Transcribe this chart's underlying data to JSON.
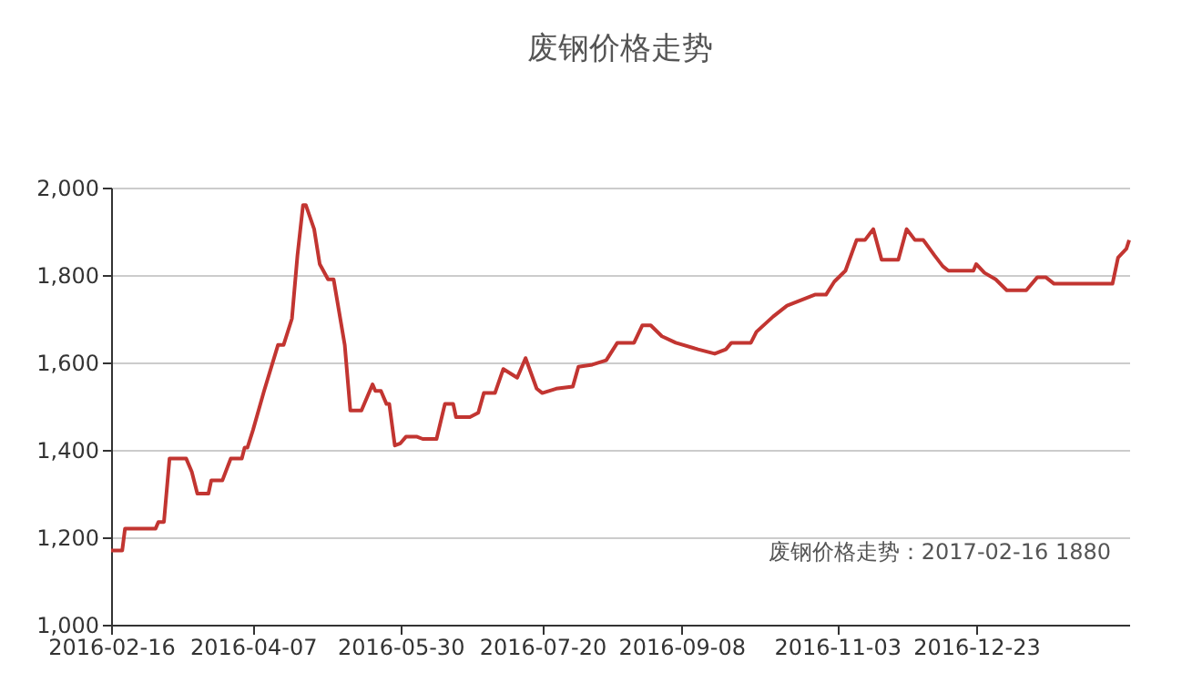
{
  "chart_data": {
    "type": "line",
    "title": "废钢价格走势",
    "x": [
      "2016-02-16",
      "2016-02-20",
      "2016-02-21",
      "2016-03-03",
      "2016-03-04",
      "2016-03-06",
      "2016-03-08",
      "2016-03-14",
      "2016-03-16",
      "2016-03-18",
      "2016-03-22",
      "2016-03-23",
      "2016-03-27",
      "2016-03-30",
      "2016-04-03",
      "2016-04-04",
      "2016-04-05",
      "2016-04-07",
      "2016-04-11",
      "2016-04-16",
      "2016-04-18",
      "2016-04-21",
      "2016-04-23",
      "2016-04-25",
      "2016-04-26",
      "2016-04-29",
      "2016-05-01",
      "2016-05-04",
      "2016-05-06",
      "2016-05-10",
      "2016-05-12",
      "2016-05-16",
      "2016-05-20",
      "2016-05-21",
      "2016-05-23",
      "2016-05-25",
      "2016-05-26",
      "2016-05-28",
      "2016-05-30",
      "2016-06-01",
      "2016-06-05",
      "2016-06-07",
      "2016-06-12",
      "2016-06-15",
      "2016-06-18",
      "2016-06-19",
      "2016-06-24",
      "2016-06-27",
      "2016-06-29",
      "2016-07-03",
      "2016-07-06",
      "2016-07-11",
      "2016-07-14",
      "2016-07-18",
      "2016-07-20",
      "2016-07-25",
      "2016-07-31",
      "2016-08-02",
      "2016-08-07",
      "2016-08-12",
      "2016-08-16",
      "2016-08-22",
      "2016-08-25",
      "2016-08-28",
      "2016-09-01",
      "2016-09-06",
      "2016-09-14",
      "2016-09-20",
      "2016-09-24",
      "2016-09-26",
      "2016-10-03",
      "2016-10-05",
      "2016-10-11",
      "2016-10-16",
      "2016-10-26",
      "2016-10-30",
      "2016-11-02",
      "2016-11-06",
      "2016-11-10",
      "2016-11-13",
      "2016-11-16",
      "2016-11-19",
      "2016-11-25",
      "2016-11-28",
      "2016-12-01",
      "2016-12-04",
      "2016-12-08",
      "2016-12-11",
      "2016-12-13",
      "2016-12-22",
      "2016-12-23",
      "2016-12-26",
      "2016-12-30",
      "2017-01-03",
      "2017-01-10",
      "2017-01-14",
      "2017-01-17",
      "2017-01-20",
      "2017-02-10",
      "2017-02-12",
      "2017-02-15",
      "2017-02-16"
    ],
    "series": [
      {
        "color": "#c23531",
        "values": [
          1170,
          1170,
          1220,
          1220,
          1235,
          1235,
          1380,
          1380,
          1350,
          1300,
          1300,
          1330,
          1330,
          1380,
          1380,
          1405,
          1405,
          1445,
          1535,
          1640,
          1640,
          1700,
          1845,
          1960,
          1960,
          1905,
          1825,
          1790,
          1790,
          1640,
          1490,
          1490,
          1550,
          1535,
          1535,
          1505,
          1505,
          1410,
          1415,
          1430,
          1430,
          1425,
          1425,
          1505,
          1505,
          1475,
          1475,
          1485,
          1530,
          1530,
          1585,
          1565,
          1610,
          1540,
          1530,
          1540,
          1545,
          1590,
          1595,
          1605,
          1645,
          1645,
          1685,
          1685,
          1660,
          1645,
          1630,
          1620,
          1630,
          1645,
          1645,
          1670,
          1705,
          1730,
          1755,
          1755,
          1785,
          1810,
          1880,
          1880,
          1905,
          1835,
          1835,
          1905,
          1880,
          1880,
          1845,
          1820,
          1810,
          1810,
          1825,
          1805,
          1790,
          1765,
          1765,
          1795,
          1795,
          1780,
          1780,
          1840,
          1860,
          1880
        ]
      }
    ],
    "xlim": [
      "2016-02-16",
      "2017-02-16"
    ],
    "xticks": [
      "2016-02-16",
      "2016-04-07",
      "2016-05-30",
      "2016-07-20",
      "2016-09-08",
      "2016-11-03",
      "2016-12-23"
    ],
    "ylim": [
      1000,
      2000
    ],
    "yticks": [
      {
        "value": 1000,
        "label": "1,000"
      },
      {
        "value": 1200,
        "label": "1,200"
      },
      {
        "value": 1400,
        "label": "1,400"
      },
      {
        "value": 1600,
        "label": "1,600"
      },
      {
        "value": 1800,
        "label": "1,800"
      },
      {
        "value": 2000,
        "label": "2,000"
      }
    ],
    "grid": "y",
    "marker": "none",
    "line_style": "solid",
    "annotations": [
      "废钢价格走势：2017-02-16 1880"
    ]
  }
}
